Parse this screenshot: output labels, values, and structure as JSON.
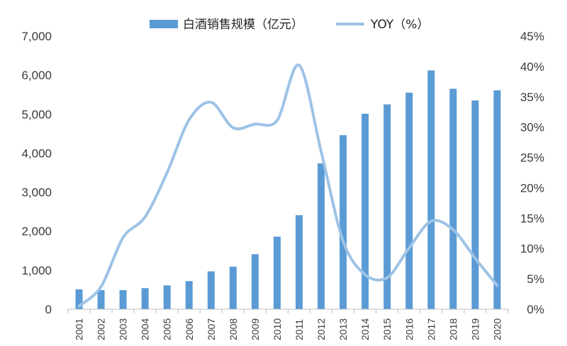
{
  "chart_data": {
    "type": "bar",
    "categories": [
      "2001",
      "2002",
      "2003",
      "2004",
      "2005",
      "2006",
      "2007",
      "2008",
      "2009",
      "2010",
      "2011",
      "2012",
      "2013",
      "2014",
      "2015",
      "2016",
      "2017",
      "2018",
      "2019",
      "2020"
    ],
    "series": [
      {
        "name": "白酒销售规模（亿元）",
        "kind": "bar",
        "axis": "left",
        "color": "#5b9bd5",
        "values": [
          510,
          490,
          490,
          540,
          610,
          720,
          970,
          1090,
          1410,
          1860,
          2410,
          3740,
          4460,
          5010,
          5250,
          5550,
          6120,
          5650,
          5350,
          5610
        ]
      },
      {
        "name": "YOY（%）",
        "kind": "line",
        "axis": "right",
        "color": "#9dc3e6",
        "values": [
          0.5,
          3.7,
          11.8,
          15.2,
          22.5,
          31.2,
          34.1,
          29.9,
          30.5,
          31.1,
          40.2,
          26.0,
          11.2,
          5.7,
          5.2,
          10.1,
          14.5,
          13.1,
          8.4,
          3.9
        ]
      }
    ],
    "ylim_left": [
      0,
      7000
    ],
    "ylim_right": [
      0,
      45
    ],
    "yticks_left": [
      "0",
      "1,000",
      "2,000",
      "3,000",
      "4,000",
      "5,000",
      "6,000",
      "7,000"
    ],
    "yticks_right": [
      "0%",
      "5%",
      "10%",
      "15%",
      "20%",
      "25%",
      "30%",
      "35%",
      "40%",
      "45%"
    ],
    "legend": {
      "placement": "top-center",
      "items": [
        "白酒销售规模（亿元）",
        "YOY（%）"
      ]
    },
    "grid": false
  }
}
